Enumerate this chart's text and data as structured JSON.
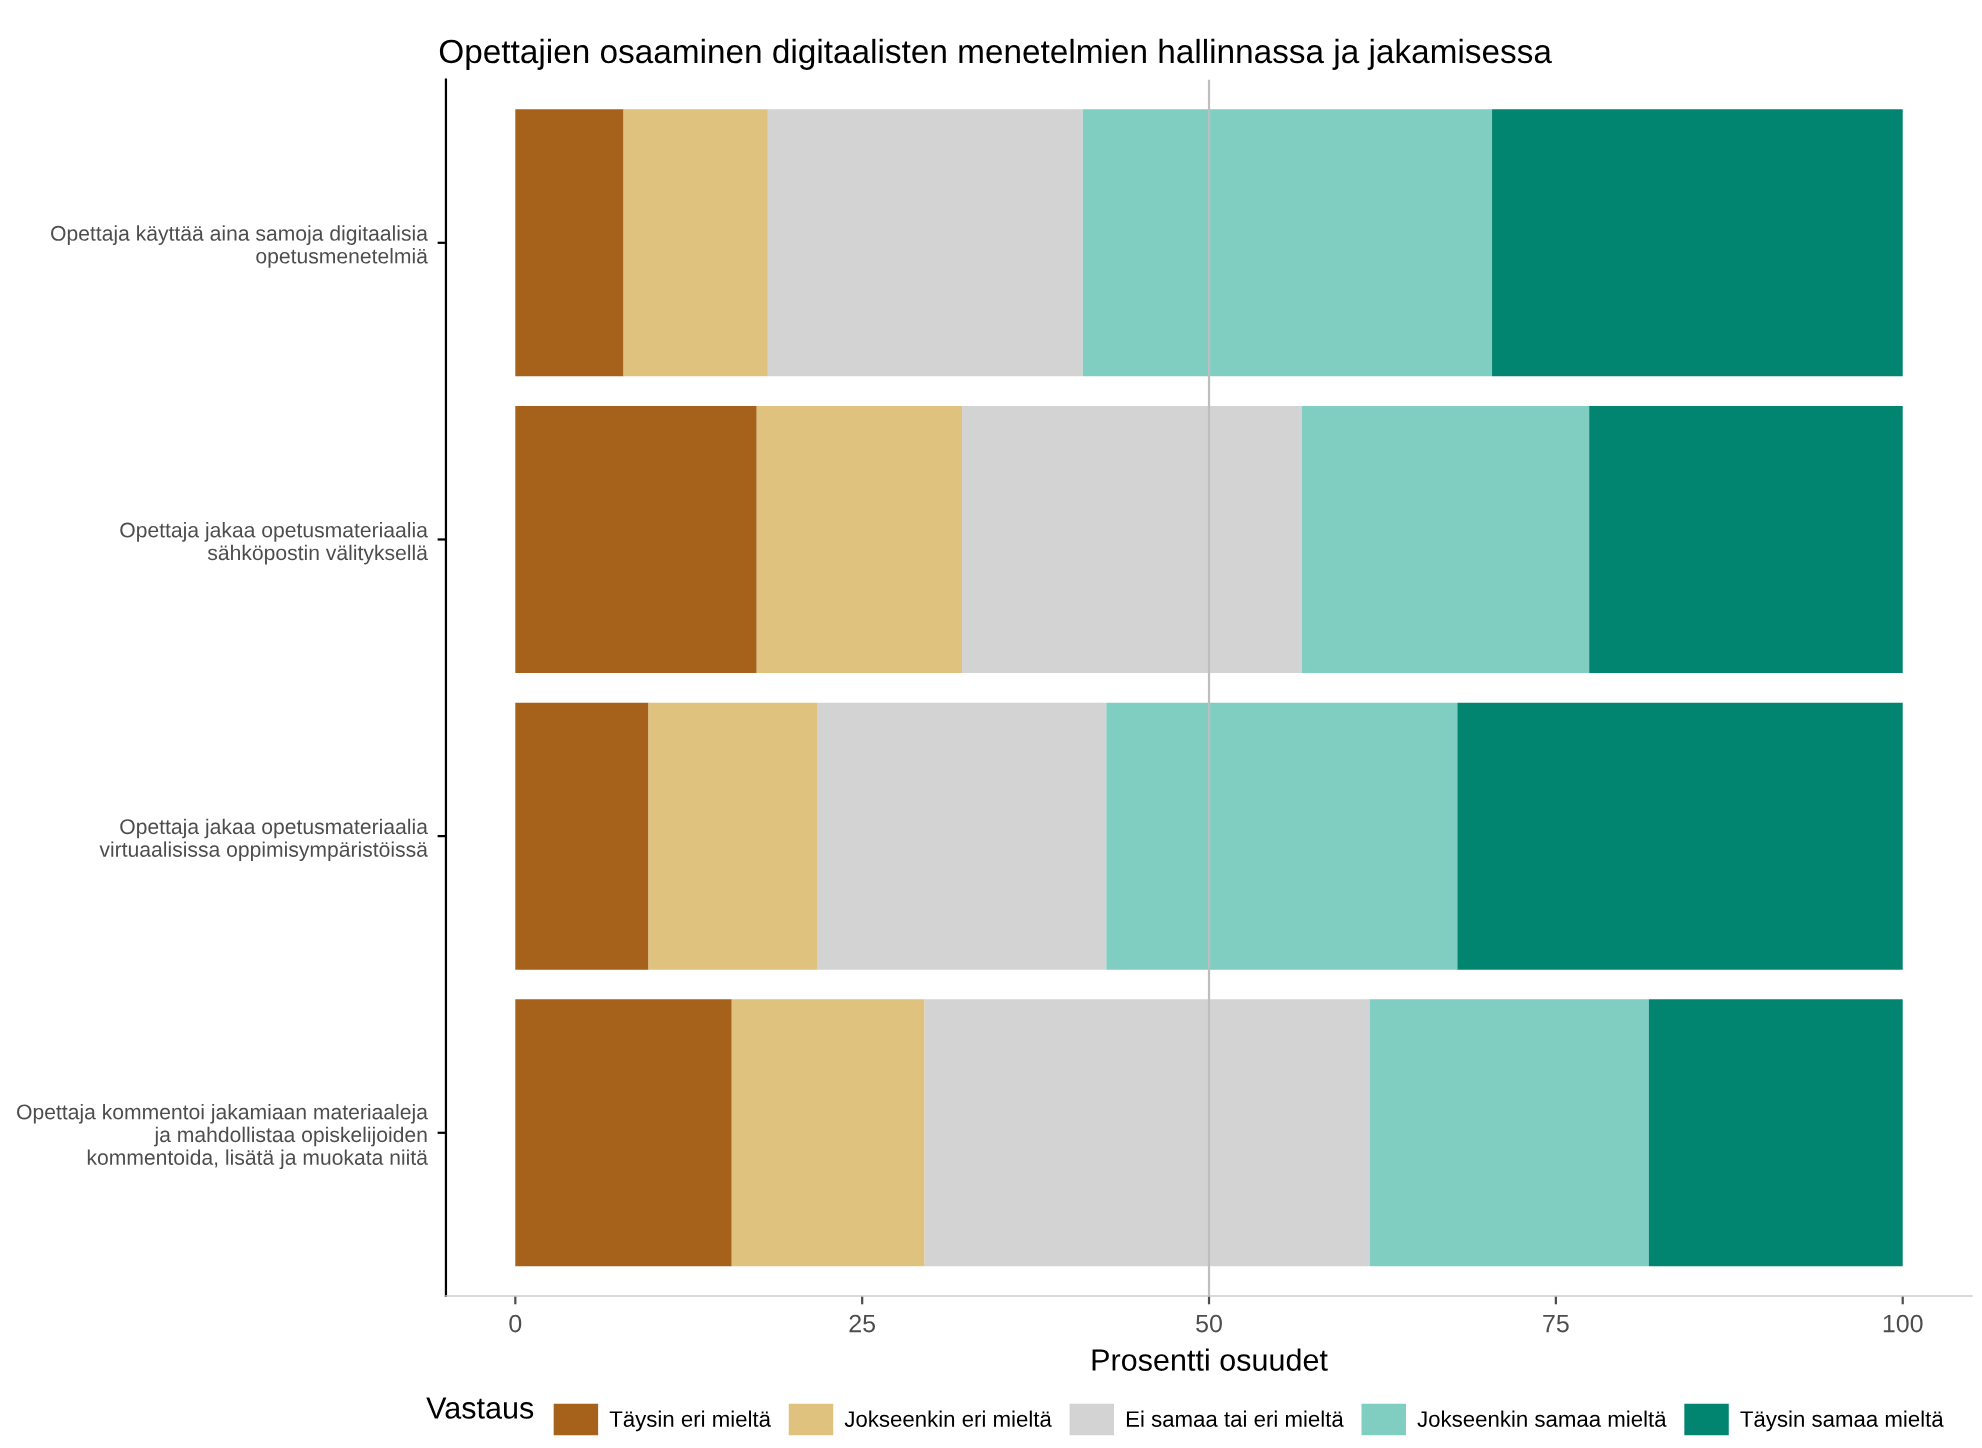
{
  "chart_data": {
    "type": "bar",
    "orientation": "horizontal",
    "stacked": true,
    "title": "Opettajien osaaminen digitaalisten menetelmien hallinnassa ja jakamisessa",
    "xlabel": "Prosentti osuudet",
    "legend_title": "Vastaus",
    "legend": "bottom",
    "grid": false,
    "categories": [
      "Opettaja käyttää aina samoja digitaalisia\nopetusmenetelmiä",
      "Opettaja jakaa opetusmateriaalia\nsähköpostin välityksellä",
      "Opettaja jakaa opetusmateriaalia\nvirtuaalisissa oppimisympäristöissä",
      "Opettaja kommentoi jakamiaan materiaaleja\nja mahdollistaa opiskelijoiden\nkommentoida, lisätä ja muokata niitä"
    ],
    "xlim": [
      -5,
      105
    ],
    "xticks": [
      0,
      25,
      50,
      75,
      100
    ],
    "ref_lines": [
      {
        "axis": "x",
        "value": 50,
        "color": "#bebebe"
      }
    ],
    "series": [
      {
        "name": "Täysin eri mieltä",
        "color": "#a6611a",
        "values": [
          7.8,
          17.4,
          9.6,
          15.6
        ]
      },
      {
        "name": "Jokseenkin eri mieltä",
        "color": "#dfc27d",
        "values": [
          10.4,
          14.8,
          12.2,
          13.9
        ]
      },
      {
        "name": "Ei samaa tai eri mieltä",
        "color": "#d3d3d3",
        "values": [
          22.7,
          24.5,
          20.8,
          32.1
        ]
      },
      {
        "name": "Jokseenkin samaa mieltä",
        "color": "#80cdc1",
        "values": [
          29.5,
          20.7,
          25.3,
          20.1
        ]
      },
      {
        "name": "Täysin samaa mieltä",
        "color": "#018571",
        "values": [
          29.6,
          22.6,
          32.1,
          18.3
        ]
      }
    ]
  }
}
